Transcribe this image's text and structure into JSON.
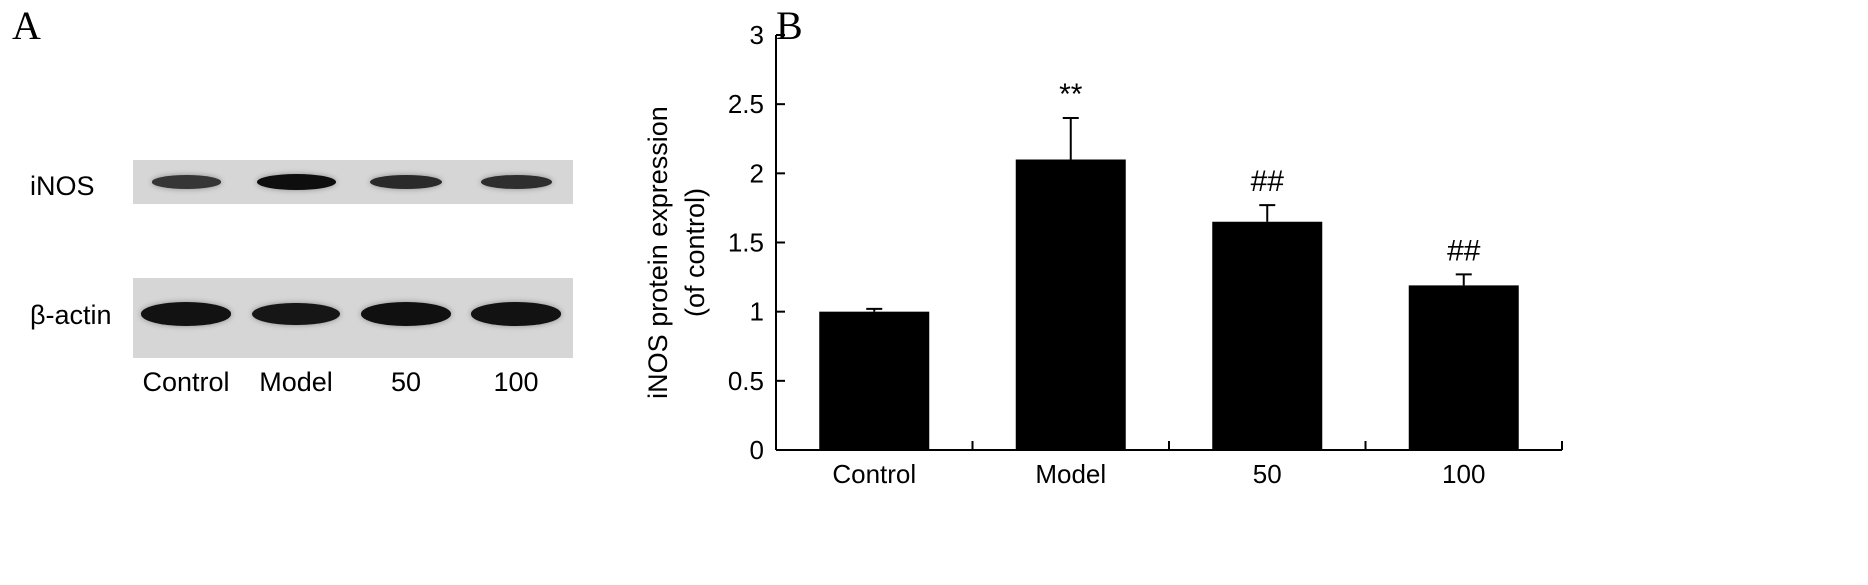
{
  "panel_a": {
    "letter": "A",
    "rows": [
      {
        "label": "iNOS",
        "intensities": [
          0.45,
          0.95,
          0.6,
          0.55
        ]
      },
      {
        "label": "β-actin",
        "intensities": [
          0.9,
          0.85,
          0.92,
          0.9
        ]
      }
    ],
    "lanes": [
      "Control",
      "Model",
      "50",
      "100"
    ]
  },
  "panel_b": {
    "letter": "B"
  },
  "chart_data": {
    "type": "bar",
    "categories": [
      "Control",
      "Model",
      "50",
      "100"
    ],
    "values": [
      1.0,
      2.1,
      1.65,
      1.19
    ],
    "errors": [
      0.02,
      0.3,
      0.12,
      0.08
    ],
    "annotations": [
      "",
      "**",
      "##",
      "##"
    ],
    "ylabel_line1": "iNOS protein expression",
    "ylabel_line2": "(of control)",
    "ylim": [
      0,
      3
    ],
    "yticks": [
      0,
      0.5,
      1,
      1.5,
      2,
      2.5,
      3
    ],
    "ytick_labels": [
      "0",
      "0.5",
      "1",
      "1.5",
      "2",
      "2.5",
      "3"
    ],
    "bar_color": "#000000",
    "grid": false
  }
}
